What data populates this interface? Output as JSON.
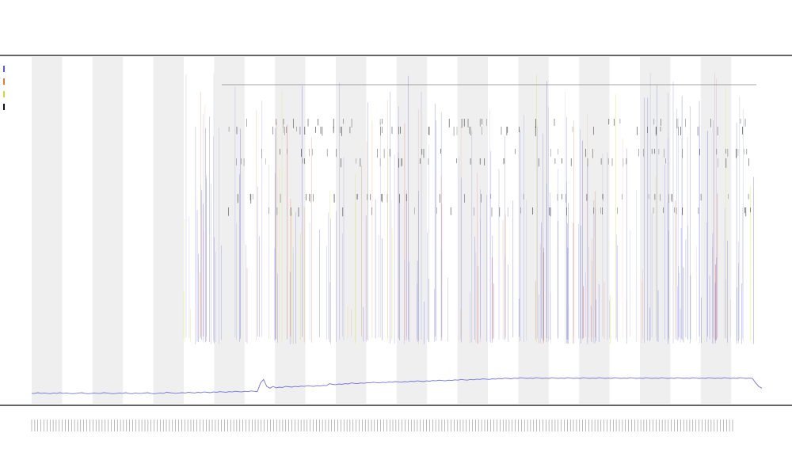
{
  "chart_data": {
    "type": "line",
    "title": "",
    "subtitle_1": "",
    "subtitle_2": "",
    "xlabel": "",
    "ylabel": "",
    "legend_placement": "top-left",
    "legend": [
      "",
      "",
      "",
      ""
    ],
    "band_count": 12,
    "colors": {
      "series_main": "#5b5bd6",
      "series_orange": "#e07a3a",
      "series_red": "#cc2a2a",
      "series_yellow": "#d8d830",
      "series_black": "#111111",
      "band": "#efefef",
      "axis": "#333333"
    },
    "series": [
      {
        "values": [
          0.03,
          0.03,
          0.032,
          0.03,
          0.031,
          0.03,
          0.029,
          0.031,
          0.03,
          0.032,
          0.03,
          0.031,
          0.03,
          0.029,
          0.03,
          0.031,
          0.032,
          0.03,
          0.029,
          0.03,
          0.031,
          0.03,
          0.03,
          0.032,
          0.031,
          0.03,
          0.029,
          0.03,
          0.031,
          0.03,
          0.032,
          0.03,
          0.029,
          0.031,
          0.03,
          0.03,
          0.031,
          0.032,
          0.03,
          0.029,
          0.03,
          0.031,
          0.03,
          0.033,
          0.032,
          0.031,
          0.03,
          0.031,
          0.032,
          0.031,
          0.033,
          0.032,
          0.031,
          0.033,
          0.032,
          0.034,
          0.033,
          0.032,
          0.034,
          0.033,
          0.035,
          0.034,
          0.033,
          0.035,
          0.034,
          0.036,
          0.035,
          0.034,
          0.036,
          0.035,
          0.037,
          0.036,
          0.035,
          0.06,
          0.07,
          0.05,
          0.045,
          0.05,
          0.046,
          0.048,
          0.047,
          0.05,
          0.049,
          0.048,
          0.05,
          0.049,
          0.051,
          0.05,
          0.052,
          0.051,
          0.05,
          0.052,
          0.051,
          0.053,
          0.052,
          0.058,
          0.056,
          0.055,
          0.057,
          0.056,
          0.058,
          0.057,
          0.06,
          0.059,
          0.058,
          0.06,
          0.059,
          0.061,
          0.06,
          0.062,
          0.061,
          0.06,
          0.062,
          0.061,
          0.063,
          0.062,
          0.064,
          0.063,
          0.062,
          0.064,
          0.063,
          0.065,
          0.064,
          0.066,
          0.065,
          0.064,
          0.066,
          0.065,
          0.067,
          0.066,
          0.068,
          0.067,
          0.066,
          0.068,
          0.067,
          0.069,
          0.068,
          0.07,
          0.069,
          0.068,
          0.07,
          0.069,
          0.071,
          0.07,
          0.072,
          0.071,
          0.07,
          0.072,
          0.071,
          0.073,
          0.072,
          0.074,
          0.073,
          0.072,
          0.074,
          0.073,
          0.075,
          0.074,
          0.073,
          0.074,
          0.073,
          0.075,
          0.074,
          0.073,
          0.074,
          0.073,
          0.075,
          0.074,
          0.073,
          0.074,
          0.073,
          0.075,
          0.074,
          0.073,
          0.074,
          0.073,
          0.075,
          0.074,
          0.073,
          0.074,
          0.073,
          0.075,
          0.074,
          0.073,
          0.074,
          0.073,
          0.075,
          0.074,
          0.073,
          0.074,
          0.073,
          0.075,
          0.074,
          0.073,
          0.074,
          0.073,
          0.075,
          0.074,
          0.073,
          0.074,
          0.073,
          0.075,
          0.074,
          0.073,
          0.074,
          0.073,
          0.075,
          0.074,
          0.073,
          0.074,
          0.073,
          0.075,
          0.074,
          0.073,
          0.074,
          0.073,
          0.075,
          0.074,
          0.073,
          0.074,
          0.073,
          0.075,
          0.074,
          0.073,
          0.074,
          0.073,
          0.075,
          0.074,
          0.073,
          0.074,
          0.073,
          0.06,
          0.05,
          0.045
        ]
      }
    ],
    "ylim": [
      0,
      1
    ],
    "x_range": [
      0,
      240
    ]
  }
}
